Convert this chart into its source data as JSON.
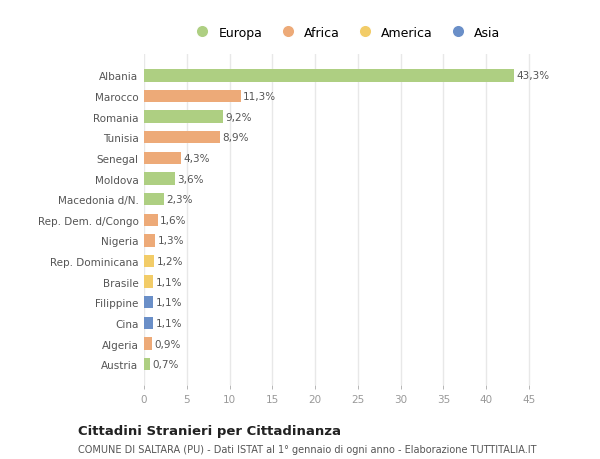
{
  "countries": [
    "Albania",
    "Marocco",
    "Romania",
    "Tunisia",
    "Senegal",
    "Moldova",
    "Macedonia d/N.",
    "Rep. Dem. d/Congo",
    "Nigeria",
    "Rep. Dominicana",
    "Brasile",
    "Filippine",
    "Cina",
    "Algeria",
    "Austria"
  ],
  "values": [
    43.3,
    11.3,
    9.2,
    8.9,
    4.3,
    3.6,
    2.3,
    1.6,
    1.3,
    1.2,
    1.1,
    1.1,
    1.1,
    0.9,
    0.7
  ],
  "labels": [
    "43,3%",
    "11,3%",
    "9,2%",
    "8,9%",
    "4,3%",
    "3,6%",
    "2,3%",
    "1,6%",
    "1,3%",
    "1,2%",
    "1,1%",
    "1,1%",
    "1,1%",
    "0,9%",
    "0,7%"
  ],
  "continents": [
    "Europa",
    "Africa",
    "Europa",
    "Africa",
    "Africa",
    "Europa",
    "Europa",
    "Africa",
    "Africa",
    "America",
    "America",
    "Asia",
    "Asia",
    "Africa",
    "Europa"
  ],
  "continent_colors": {
    "Europa": "#aecf82",
    "Africa": "#edaa78",
    "America": "#f2cc68",
    "Asia": "#6a8fc8"
  },
  "legend_items": [
    "Europa",
    "Africa",
    "America",
    "Asia"
  ],
  "title": "Cittadini Stranieri per Cittadinanza",
  "subtitle": "COMUNE DI SALTARA (PU) - Dati ISTAT al 1° gennaio di ogni anno - Elaborazione TUTTITALIA.IT",
  "xlim": [
    0,
    47
  ],
  "xticks": [
    0,
    5,
    10,
    15,
    20,
    25,
    30,
    35,
    40,
    45
  ],
  "background_color": "#ffffff",
  "grid_color": "#e8e8e8",
  "bar_height": 0.6
}
